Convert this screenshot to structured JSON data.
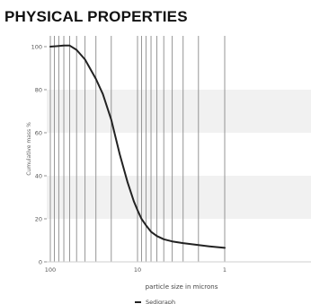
{
  "page": {
    "heading": "PHYSICAL PROPERTIES"
  },
  "chart_data": {
    "type": "line",
    "title": "",
    "xlabel": "particle size in microns",
    "ylabel": "Cumulative mass %",
    "x_scale": "log",
    "x_reversed": true,
    "xlim": [
      100,
      0.3
    ],
    "ylim": [
      0,
      105
    ],
    "x_ticks": [
      {
        "value": 100,
        "label": "100"
      },
      {
        "value": 10,
        "label": "10"
      },
      {
        "value": 1,
        "label": "1"
      }
    ],
    "y_ticks": [
      {
        "value": 0,
        "label": "0"
      },
      {
        "value": 20,
        "label": "20"
      },
      {
        "value": 40,
        "label": "40"
      },
      {
        "value": 60,
        "label": "60"
      },
      {
        "value": 80,
        "label": "80"
      },
      {
        "value": 100,
        "label": "100"
      }
    ],
    "grid": true,
    "vertical_gridlines": [
      100,
      90,
      80,
      70,
      60,
      50,
      40,
      30,
      20,
      10,
      9,
      8,
      7,
      6,
      5,
      4,
      3,
      2,
      1
    ],
    "shaded_bands": [
      [
        20,
        40
      ],
      [
        60,
        80
      ]
    ],
    "legend_position": "bottom",
    "series": [
      {
        "name": "Sedigraph",
        "color": "#222222",
        "points": [
          {
            "x": 100,
            "y": 100
          },
          {
            "x": 85,
            "y": 100.2
          },
          {
            "x": 70,
            "y": 100.5
          },
          {
            "x": 60,
            "y": 100.5
          },
          {
            "x": 50,
            "y": 98.5
          },
          {
            "x": 40,
            "y": 94
          },
          {
            "x": 30,
            "y": 85
          },
          {
            "x": 25,
            "y": 78
          },
          {
            "x": 20,
            "y": 66
          },
          {
            "x": 16,
            "y": 50
          },
          {
            "x": 13,
            "y": 37
          },
          {
            "x": 11,
            "y": 28
          },
          {
            "x": 10,
            "y": 24
          },
          {
            "x": 9,
            "y": 20
          },
          {
            "x": 8,
            "y": 17
          },
          {
            "x": 7,
            "y": 14
          },
          {
            "x": 6,
            "y": 12
          },
          {
            "x": 5,
            "y": 10.5
          },
          {
            "x": 4,
            "y": 9.5
          },
          {
            "x": 3,
            "y": 8.7
          },
          {
            "x": 2,
            "y": 7.8
          },
          {
            "x": 1.5,
            "y": 7.2
          },
          {
            "x": 1,
            "y": 6.5
          }
        ]
      }
    ]
  }
}
